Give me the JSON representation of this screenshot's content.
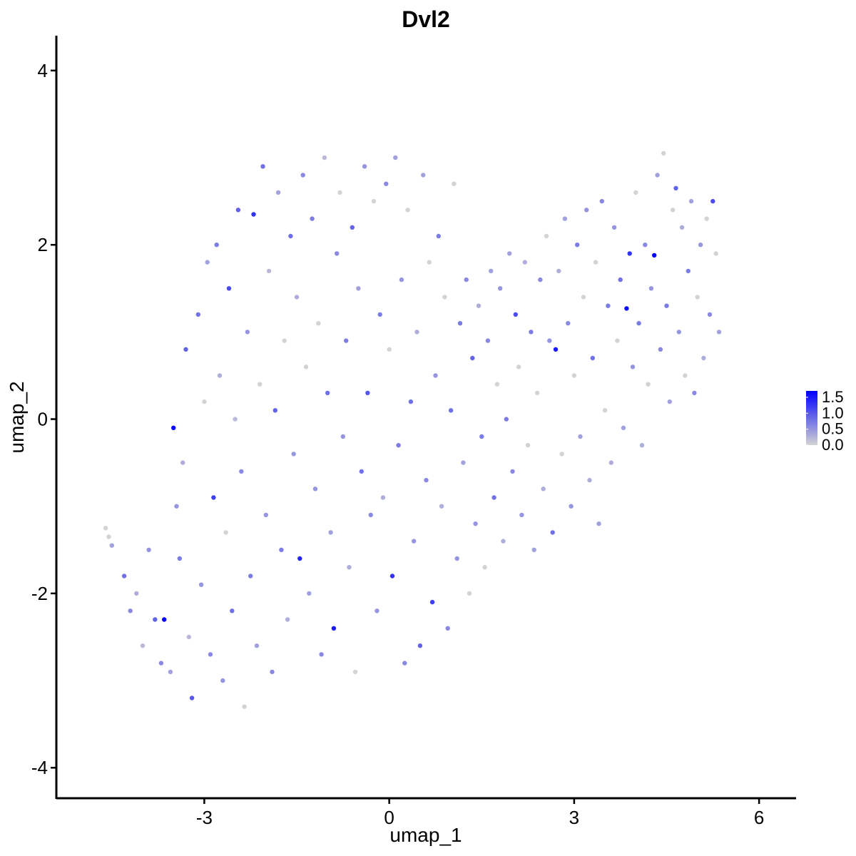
{
  "chart_data": {
    "type": "scatter",
    "title": "Dvl2",
    "xlabel": "umap_1",
    "ylabel": "umap_2",
    "xlim": [
      -5.4,
      6.6
    ],
    "ylim": [
      -4.35,
      4.4
    ],
    "xticks": [
      -3,
      0,
      3,
      6
    ],
    "yticks": [
      -4,
      -2,
      0,
      2,
      4
    ],
    "xtick_labels": [
      "-3",
      "0",
      "3",
      "6"
    ],
    "ytick_labels": [
      "-4",
      "-2",
      "0",
      "2",
      "4"
    ],
    "color_low": "#d3d3d3",
    "color_high": "#0000ff",
    "legend": {
      "position": "right",
      "range": [
        0,
        1.7
      ],
      "ticks": [
        0.0,
        0.5,
        1.0,
        1.5
      ],
      "tick_labels": [
        "0.0",
        "0.5",
        "1.0",
        "1.5"
      ]
    },
    "points": [
      [
        -4.6,
        -1.25,
        0
      ],
      [
        -4.55,
        -1.35,
        0
      ],
      [
        -4.5,
        -1.45,
        0.4
      ],
      [
        -4.3,
        -1.8,
        0.8
      ],
      [
        -4.2,
        -2.2,
        0.6
      ],
      [
        -4.1,
        -2.0,
        0.3
      ],
      [
        -4.0,
        -2.6,
        0.2
      ],
      [
        -3.9,
        -1.5,
        0.5
      ],
      [
        -3.8,
        -2.3,
        0.9
      ],
      [
        -3.7,
        -2.8,
        0.6
      ],
      [
        -3.65,
        -2.3,
        1.7
      ],
      [
        -3.55,
        -2.9,
        0.4
      ],
      [
        -3.5,
        -0.1,
        1.6
      ],
      [
        -3.45,
        -1.0,
        0.5
      ],
      [
        -3.4,
        -1.6,
        0.7
      ],
      [
        -3.35,
        -0.5,
        0.3
      ],
      [
        -3.3,
        0.8,
        0.9
      ],
      [
        -3.25,
        -2.5,
        0.2
      ],
      [
        -3.2,
        -3.2,
        1.0
      ],
      [
        -3.1,
        1.2,
        0.8
      ],
      [
        -3.05,
        -1.9,
        0.5
      ],
      [
        -3.0,
        0.2,
        0.0
      ],
      [
        -2.95,
        1.8,
        0.4
      ],
      [
        -2.9,
        -2.7,
        0.6
      ],
      [
        -2.85,
        -0.9,
        1.2
      ],
      [
        -2.8,
        2.0,
        0.7
      ],
      [
        -2.75,
        0.5,
        0.3
      ],
      [
        -2.7,
        -3.0,
        0.5
      ],
      [
        -2.65,
        -1.3,
        0.0
      ],
      [
        -2.6,
        1.5,
        1.1
      ],
      [
        -2.55,
        -2.2,
        0.8
      ],
      [
        -2.5,
        0.0,
        0.2
      ],
      [
        -2.45,
        2.4,
        0.9
      ],
      [
        -2.4,
        -0.6,
        0.6
      ],
      [
        -2.35,
        -3.3,
        0.0
      ],
      [
        -2.3,
        1.0,
        0.5
      ],
      [
        -2.25,
        -1.8,
        0.7
      ],
      [
        -2.2,
        2.35,
        1.3
      ],
      [
        -2.15,
        -2.6,
        0.4
      ],
      [
        -2.1,
        0.4,
        0.0
      ],
      [
        -2.05,
        2.9,
        0.8
      ],
      [
        -2.0,
        -1.1,
        0.5
      ],
      [
        -1.95,
        1.7,
        0.2
      ],
      [
        -1.9,
        -2.9,
        0.6
      ],
      [
        -1.85,
        0.1,
        0.9
      ],
      [
        -1.8,
        2.6,
        0.4
      ],
      [
        -1.75,
        -1.5,
        0.7
      ],
      [
        -1.7,
        0.9,
        0.0
      ],
      [
        -1.65,
        -2.3,
        0.3
      ],
      [
        -1.6,
        2.1,
        0.8
      ],
      [
        -1.55,
        -0.4,
        0.5
      ],
      [
        -1.5,
        1.4,
        0.3
      ],
      [
        -1.45,
        -1.6,
        1.4
      ],
      [
        -1.4,
        2.8,
        0.6
      ],
      [
        -1.35,
        0.6,
        0.0
      ],
      [
        -1.3,
        -2.0,
        0.4
      ],
      [
        -1.25,
        2.3,
        0.7
      ],
      [
        -1.2,
        -0.8,
        0.5
      ],
      [
        -1.15,
        1.1,
        0.0
      ],
      [
        -1.1,
        -2.7,
        0.6
      ],
      [
        -1.05,
        3.0,
        0.2
      ],
      [
        -1.0,
        0.3,
        0.8
      ],
      [
        -0.95,
        -1.3,
        0.4
      ],
      [
        -0.9,
        -2.4,
        1.5
      ],
      [
        -0.85,
        1.9,
        0.6
      ],
      [
        -0.8,
        2.6,
        0.0
      ],
      [
        -0.75,
        -0.2,
        0.5
      ],
      [
        -0.7,
        0.9,
        0.7
      ],
      [
        -0.65,
        -1.7,
        0.3
      ],
      [
        -0.6,
        2.2,
        0.9
      ],
      [
        -0.55,
        -2.9,
        0.0
      ],
      [
        -0.5,
        1.5,
        0.4
      ],
      [
        -0.45,
        -0.6,
        0.8
      ],
      [
        -0.4,
        2.9,
        0.5
      ],
      [
        -0.35,
        0.3,
        1.0
      ],
      [
        -0.3,
        -1.1,
        0.6
      ],
      [
        -0.25,
        2.5,
        0.0
      ],
      [
        -0.2,
        -2.2,
        0.5
      ],
      [
        -0.15,
        1.2,
        0.7
      ],
      [
        -0.1,
        -0.9,
        0.3
      ],
      [
        -0.05,
        2.7,
        0.6
      ],
      [
        0.0,
        0.8,
        0.0
      ],
      [
        0.05,
        -1.8,
        1.3
      ],
      [
        0.1,
        3.0,
        0.4
      ],
      [
        0.15,
        -0.3,
        0.7
      ],
      [
        0.2,
        1.6,
        0.5
      ],
      [
        0.25,
        -2.8,
        0.6
      ],
      [
        0.3,
        2.4,
        0.0
      ],
      [
        0.35,
        0.2,
        0.8
      ],
      [
        0.4,
        -1.4,
        0.5
      ],
      [
        0.45,
        1.0,
        0.3
      ],
      [
        0.5,
        -2.6,
        0.9
      ],
      [
        0.55,
        2.8,
        0.4
      ],
      [
        0.6,
        -0.7,
        0.6
      ],
      [
        0.65,
        1.8,
        0.0
      ],
      [
        0.7,
        -2.1,
        1.2
      ],
      [
        0.75,
        0.5,
        0.5
      ],
      [
        0.8,
        2.1,
        0.7
      ],
      [
        0.85,
        -1.0,
        0.3
      ],
      [
        0.9,
        1.4,
        0.0
      ],
      [
        0.95,
        -2.4,
        0.6
      ],
      [
        1.0,
        0.1,
        0.8
      ],
      [
        1.05,
        2.7,
        0.0
      ],
      [
        1.1,
        -1.6,
        0.5
      ],
      [
        1.15,
        1.1,
        0.7
      ],
      [
        1.2,
        -0.5,
        0.4
      ],
      [
        1.25,
        1.6,
        0.6
      ],
      [
        1.3,
        -2.0,
        0.0
      ],
      [
        1.35,
        0.7,
        0.9
      ],
      [
        1.4,
        -1.2,
        0.5
      ],
      [
        1.45,
        1.3,
        0.3
      ],
      [
        1.5,
        -0.2,
        0.7
      ],
      [
        1.55,
        -1.7,
        0.0
      ],
      [
        1.6,
        0.9,
        0.6
      ],
      [
        1.65,
        1.7,
        0.4
      ],
      [
        1.7,
        -0.9,
        0.8
      ],
      [
        1.75,
        0.4,
        0.0
      ],
      [
        1.8,
        1.5,
        0.5
      ],
      [
        1.85,
        -1.4,
        0.3
      ],
      [
        1.9,
        0.0,
        0.7
      ],
      [
        1.95,
        1.9,
        0.4
      ],
      [
        2.0,
        -0.6,
        0.6
      ],
      [
        2.05,
        1.2,
        1.1
      ],
      [
        2.1,
        0.6,
        0.0
      ],
      [
        2.15,
        -1.1,
        0.5
      ],
      [
        2.2,
        1.8,
        0.3
      ],
      [
        2.25,
        -0.3,
        0.0
      ],
      [
        2.3,
        1.0,
        0.7
      ],
      [
        2.35,
        -1.5,
        0.4
      ],
      [
        2.4,
        0.3,
        0.0
      ],
      [
        2.45,
        1.6,
        0.6
      ],
      [
        2.5,
        -0.8,
        0.3
      ],
      [
        2.55,
        2.1,
        0.0
      ],
      [
        2.6,
        0.9,
        0.5
      ],
      [
        2.65,
        -1.3,
        0.8
      ],
      [
        2.7,
        0.8,
        1.5
      ],
      [
        2.75,
        1.7,
        0.3
      ],
      [
        2.8,
        -0.4,
        0.0
      ],
      [
        2.85,
        2.3,
        0.4
      ],
      [
        2.9,
        1.1,
        0.6
      ],
      [
        2.95,
        -1.0,
        0.5
      ],
      [
        3.0,
        0.5,
        0.0
      ],
      [
        3.05,
        2.0,
        0.7
      ],
      [
        3.1,
        -0.2,
        0.4
      ],
      [
        3.15,
        1.4,
        0.0
      ],
      [
        3.2,
        2.4,
        0.5
      ],
      [
        3.25,
        -0.7,
        0.3
      ],
      [
        3.3,
        0.7,
        0.8
      ],
      [
        3.35,
        1.8,
        0.0
      ],
      [
        3.4,
        -1.2,
        0.4
      ],
      [
        3.45,
        2.5,
        0.6
      ],
      [
        3.5,
        0.1,
        0.0
      ],
      [
        3.55,
        1.3,
        0.7
      ],
      [
        3.6,
        -0.5,
        0.3
      ],
      [
        3.65,
        2.2,
        0.5
      ],
      [
        3.7,
        0.9,
        0.0
      ],
      [
        3.75,
        1.6,
        0.8
      ],
      [
        3.8,
        -0.1,
        0.4
      ],
      [
        3.85,
        1.27,
        1.6
      ],
      [
        3.9,
        1.9,
        1.3
      ],
      [
        3.95,
        0.6,
        0.5
      ],
      [
        4.0,
        2.6,
        0.0
      ],
      [
        4.05,
        1.1,
        0.7
      ],
      [
        4.1,
        -0.3,
        0.3
      ],
      [
        4.15,
        2.0,
        0.6
      ],
      [
        4.2,
        0.4,
        0.0
      ],
      [
        4.25,
        1.5,
        0.5
      ],
      [
        4.3,
        1.88,
        1.7
      ],
      [
        4.35,
        2.8,
        0.4
      ],
      [
        4.4,
        0.8,
        0.6
      ],
      [
        4.45,
        3.05,
        0.0
      ],
      [
        4.5,
        1.3,
        0.7
      ],
      [
        4.55,
        0.2,
        0.4
      ],
      [
        4.6,
        2.4,
        0.0
      ],
      [
        4.65,
        2.65,
        0.9
      ],
      [
        4.7,
        1.0,
        0.5
      ],
      [
        4.75,
        2.2,
        0.3
      ],
      [
        4.8,
        0.5,
        0.0
      ],
      [
        4.85,
        1.7,
        0.7
      ],
      [
        4.9,
        2.5,
        0.4
      ],
      [
        4.95,
        0.3,
        0.6
      ],
      [
        5.0,
        1.4,
        0.0
      ],
      [
        5.05,
        2.0,
        0.5
      ],
      [
        5.1,
        0.7,
        0.3
      ],
      [
        5.15,
        2.3,
        0.0
      ],
      [
        5.2,
        1.2,
        0.6
      ],
      [
        5.25,
        2.5,
        1.1
      ],
      [
        5.3,
        1.9,
        0.0
      ],
      [
        5.35,
        1.0,
        0.4
      ]
    ]
  }
}
